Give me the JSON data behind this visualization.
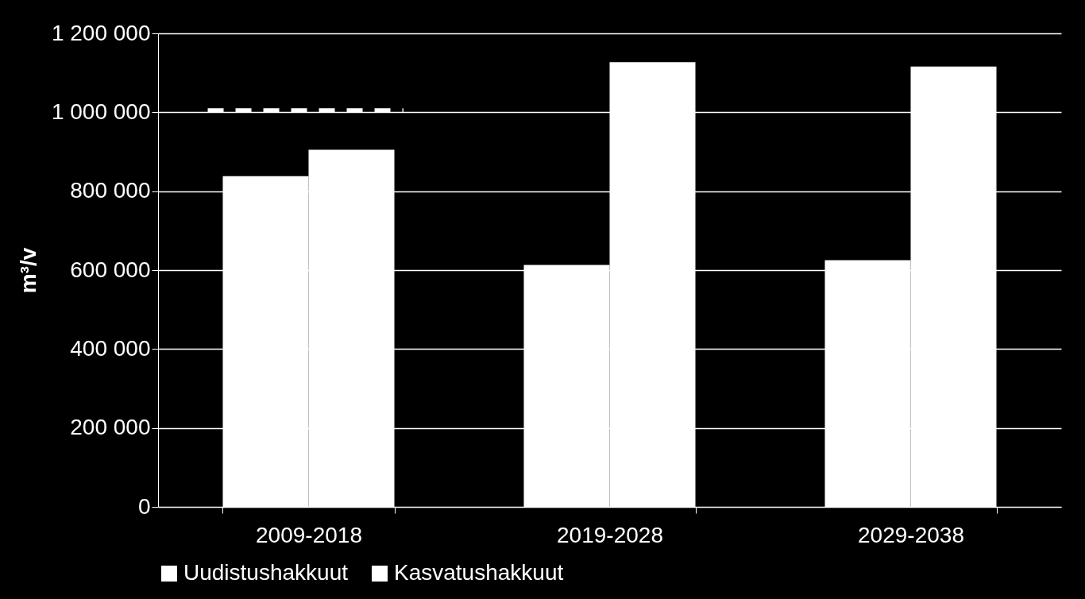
{
  "chart_data": {
    "type": "bar",
    "ylabel": "m³/v",
    "categories": [
      "2009-2018",
      "2019-2028",
      "2029-2038"
    ],
    "series": [
      {
        "name": "Uudistushakkuut",
        "color": "#ffffff",
        "values": [
          838000,
          613000,
          625000
        ]
      },
      {
        "name": "Kasvatushakkuut",
        "color": "#ffffff",
        "values": [
          905000,
          1127000,
          1116000
        ]
      }
    ],
    "ylim": [
      0,
      1200000
    ],
    "yticks": [
      0,
      200000,
      400000,
      600000,
      800000,
      1000000,
      1200000
    ],
    "grid": "y",
    "legend": "bottom",
    "ref_lines": [
      {
        "axis": "y",
        "value": 1005000,
        "color": "#ffffff",
        "line_style": "dashed"
      }
    ]
  }
}
